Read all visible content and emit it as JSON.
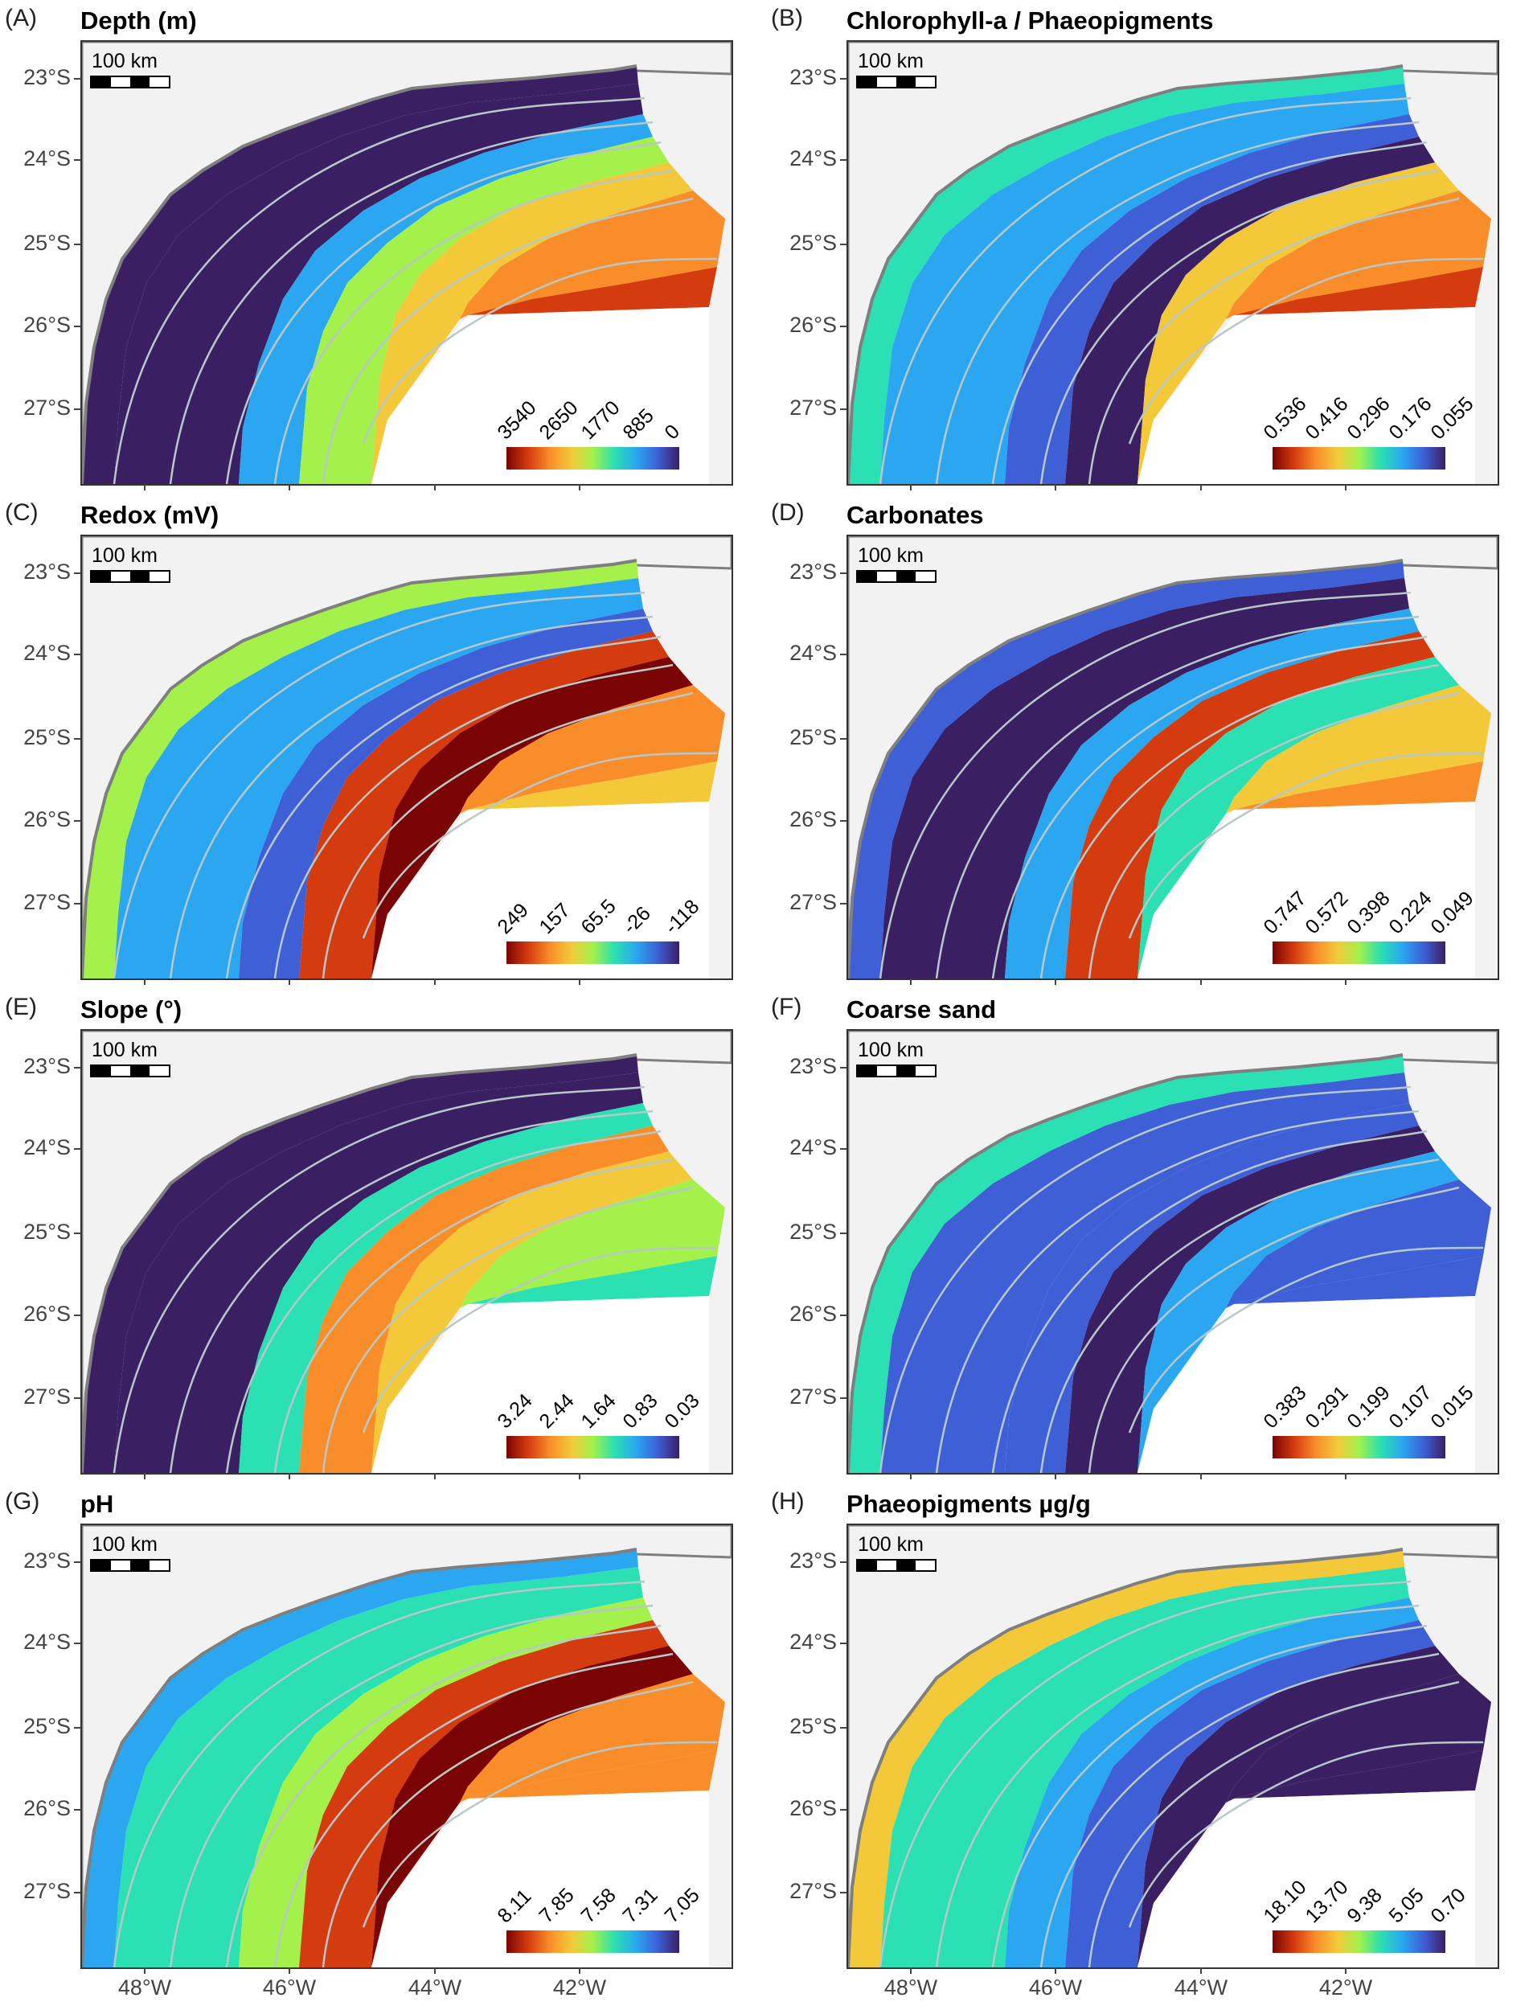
{
  "panels": [
    {
      "letter": "(A)",
      "title": "Depth (m)",
      "scheme": "depth",
      "legend": [
        "3540",
        "2650",
        "1770",
        "885",
        "0"
      ]
    },
    {
      "letter": "(B)",
      "title": "Chlorophyll-a / Phaeopigments",
      "scheme": "chl",
      "legend": [
        "0.536",
        "0.416",
        "0.296",
        "0.176",
        "0.055"
      ]
    },
    {
      "letter": "(C)",
      "title": "Redox (mV)",
      "scheme": "redox",
      "legend": [
        "249",
        "157",
        "65.5",
        "-26",
        "-118"
      ]
    },
    {
      "letter": "(D)",
      "title": "Carbonates",
      "scheme": "carb",
      "legend": [
        "0.747",
        "0.572",
        "0.398",
        "0.224",
        "0.049"
      ]
    },
    {
      "letter": "(E)",
      "title": "Slope (°)",
      "scheme": "slope",
      "legend": [
        "3.24",
        "2.44",
        "1.64",
        "0.83",
        "0.03"
      ]
    },
    {
      "letter": "(F)",
      "title": "Coarse sand",
      "scheme": "sand",
      "legend": [
        "0.383",
        "0.291",
        "0.199",
        "0.107",
        "0.015"
      ]
    },
    {
      "letter": "(G)",
      "title": "pH",
      "scheme": "ph",
      "legend": [
        "8.11",
        "7.85",
        "7.58",
        "7.31",
        "7.05"
      ]
    },
    {
      "letter": "(H)",
      "title": "Phaeopigments µg/g",
      "scheme": "phaeo",
      "legend": [
        "18.10",
        "13.70",
        "9.38",
        "5.05",
        "0.70"
      ]
    }
  ],
  "lat_labels": [
    "23°S",
    "24°S",
    "25°S",
    "26°S",
    "27°S"
  ],
  "lon_labels": [
    "48°W",
    "46°W",
    "44°W",
    "42°W"
  ],
  "scalebar_label": "100 km",
  "colors": {
    "land": "#f2f2f2",
    "coast": "#7f7f7f",
    "contour": "#b8c8c8",
    "palette": [
      "#3b1f63",
      "#3e5fd6",
      "#2aa7f0",
      "#2be0b2",
      "#a3f14a",
      "#f3c93a",
      "#f98d2a",
      "#d43b0e",
      "#7a0403"
    ]
  }
}
